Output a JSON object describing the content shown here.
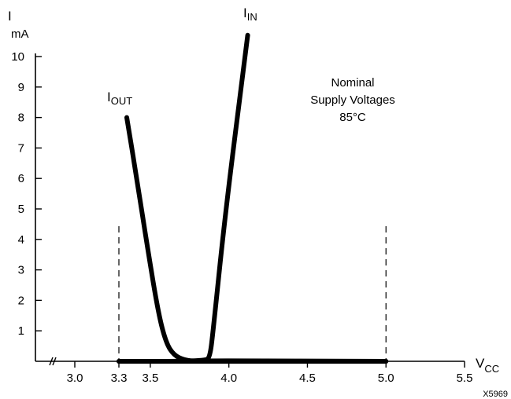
{
  "chart_data": {
    "type": "line",
    "y_axis": {
      "symbol": "I",
      "unit": "mA",
      "range": [
        0,
        11
      ],
      "ticks": [
        1,
        2,
        3,
        4,
        5,
        6,
        7,
        8,
        9,
        10
      ],
      "tick_labels": [
        "1",
        "2",
        "3",
        "4",
        "5",
        "6",
        "7",
        "8",
        "9",
        "10"
      ]
    },
    "x_axis": {
      "symbol": "V",
      "subscript": "CC",
      "ticks": [
        3.0,
        3.3,
        3.5,
        4.0,
        4.5,
        5.0,
        5.5
      ],
      "tick_labels": [
        "3.0",
        "3.3",
        "3.5",
        "4.0",
        "4.5",
        "5.0",
        "5.5"
      ],
      "axis_break": true
    },
    "reference_lines": [
      {
        "x": 3.3,
        "style": "dashed"
      },
      {
        "x": 5.0,
        "style": "dashed"
      }
    ],
    "annotation": {
      "lines": [
        "Nominal",
        "Supply Voltages",
        "85°C"
      ]
    },
    "series": [
      {
        "name": "I_OUT",
        "label_main": "I",
        "label_sub": "OUT",
        "points": [
          [
            3.35,
            8.0
          ],
          [
            3.42,
            5.8
          ],
          [
            3.48,
            3.8
          ],
          [
            3.55,
            1.6
          ],
          [
            3.6,
            0.6
          ],
          [
            3.65,
            0.2
          ],
          [
            3.72,
            0.03
          ],
          [
            3.8,
            0.0
          ],
          [
            3.85,
            0.02
          ],
          [
            5.0,
            0.0
          ]
        ]
      },
      {
        "name": "I_IN",
        "label_main": "I",
        "label_sub": "IN",
        "points": [
          [
            3.3,
            0.0
          ],
          [
            3.85,
            0.0
          ],
          [
            3.88,
            0.15
          ],
          [
            3.9,
            1.0
          ],
          [
            3.98,
            5.0
          ],
          [
            4.12,
            10.7
          ]
        ]
      }
    ],
    "figure_id": "X5969"
  }
}
